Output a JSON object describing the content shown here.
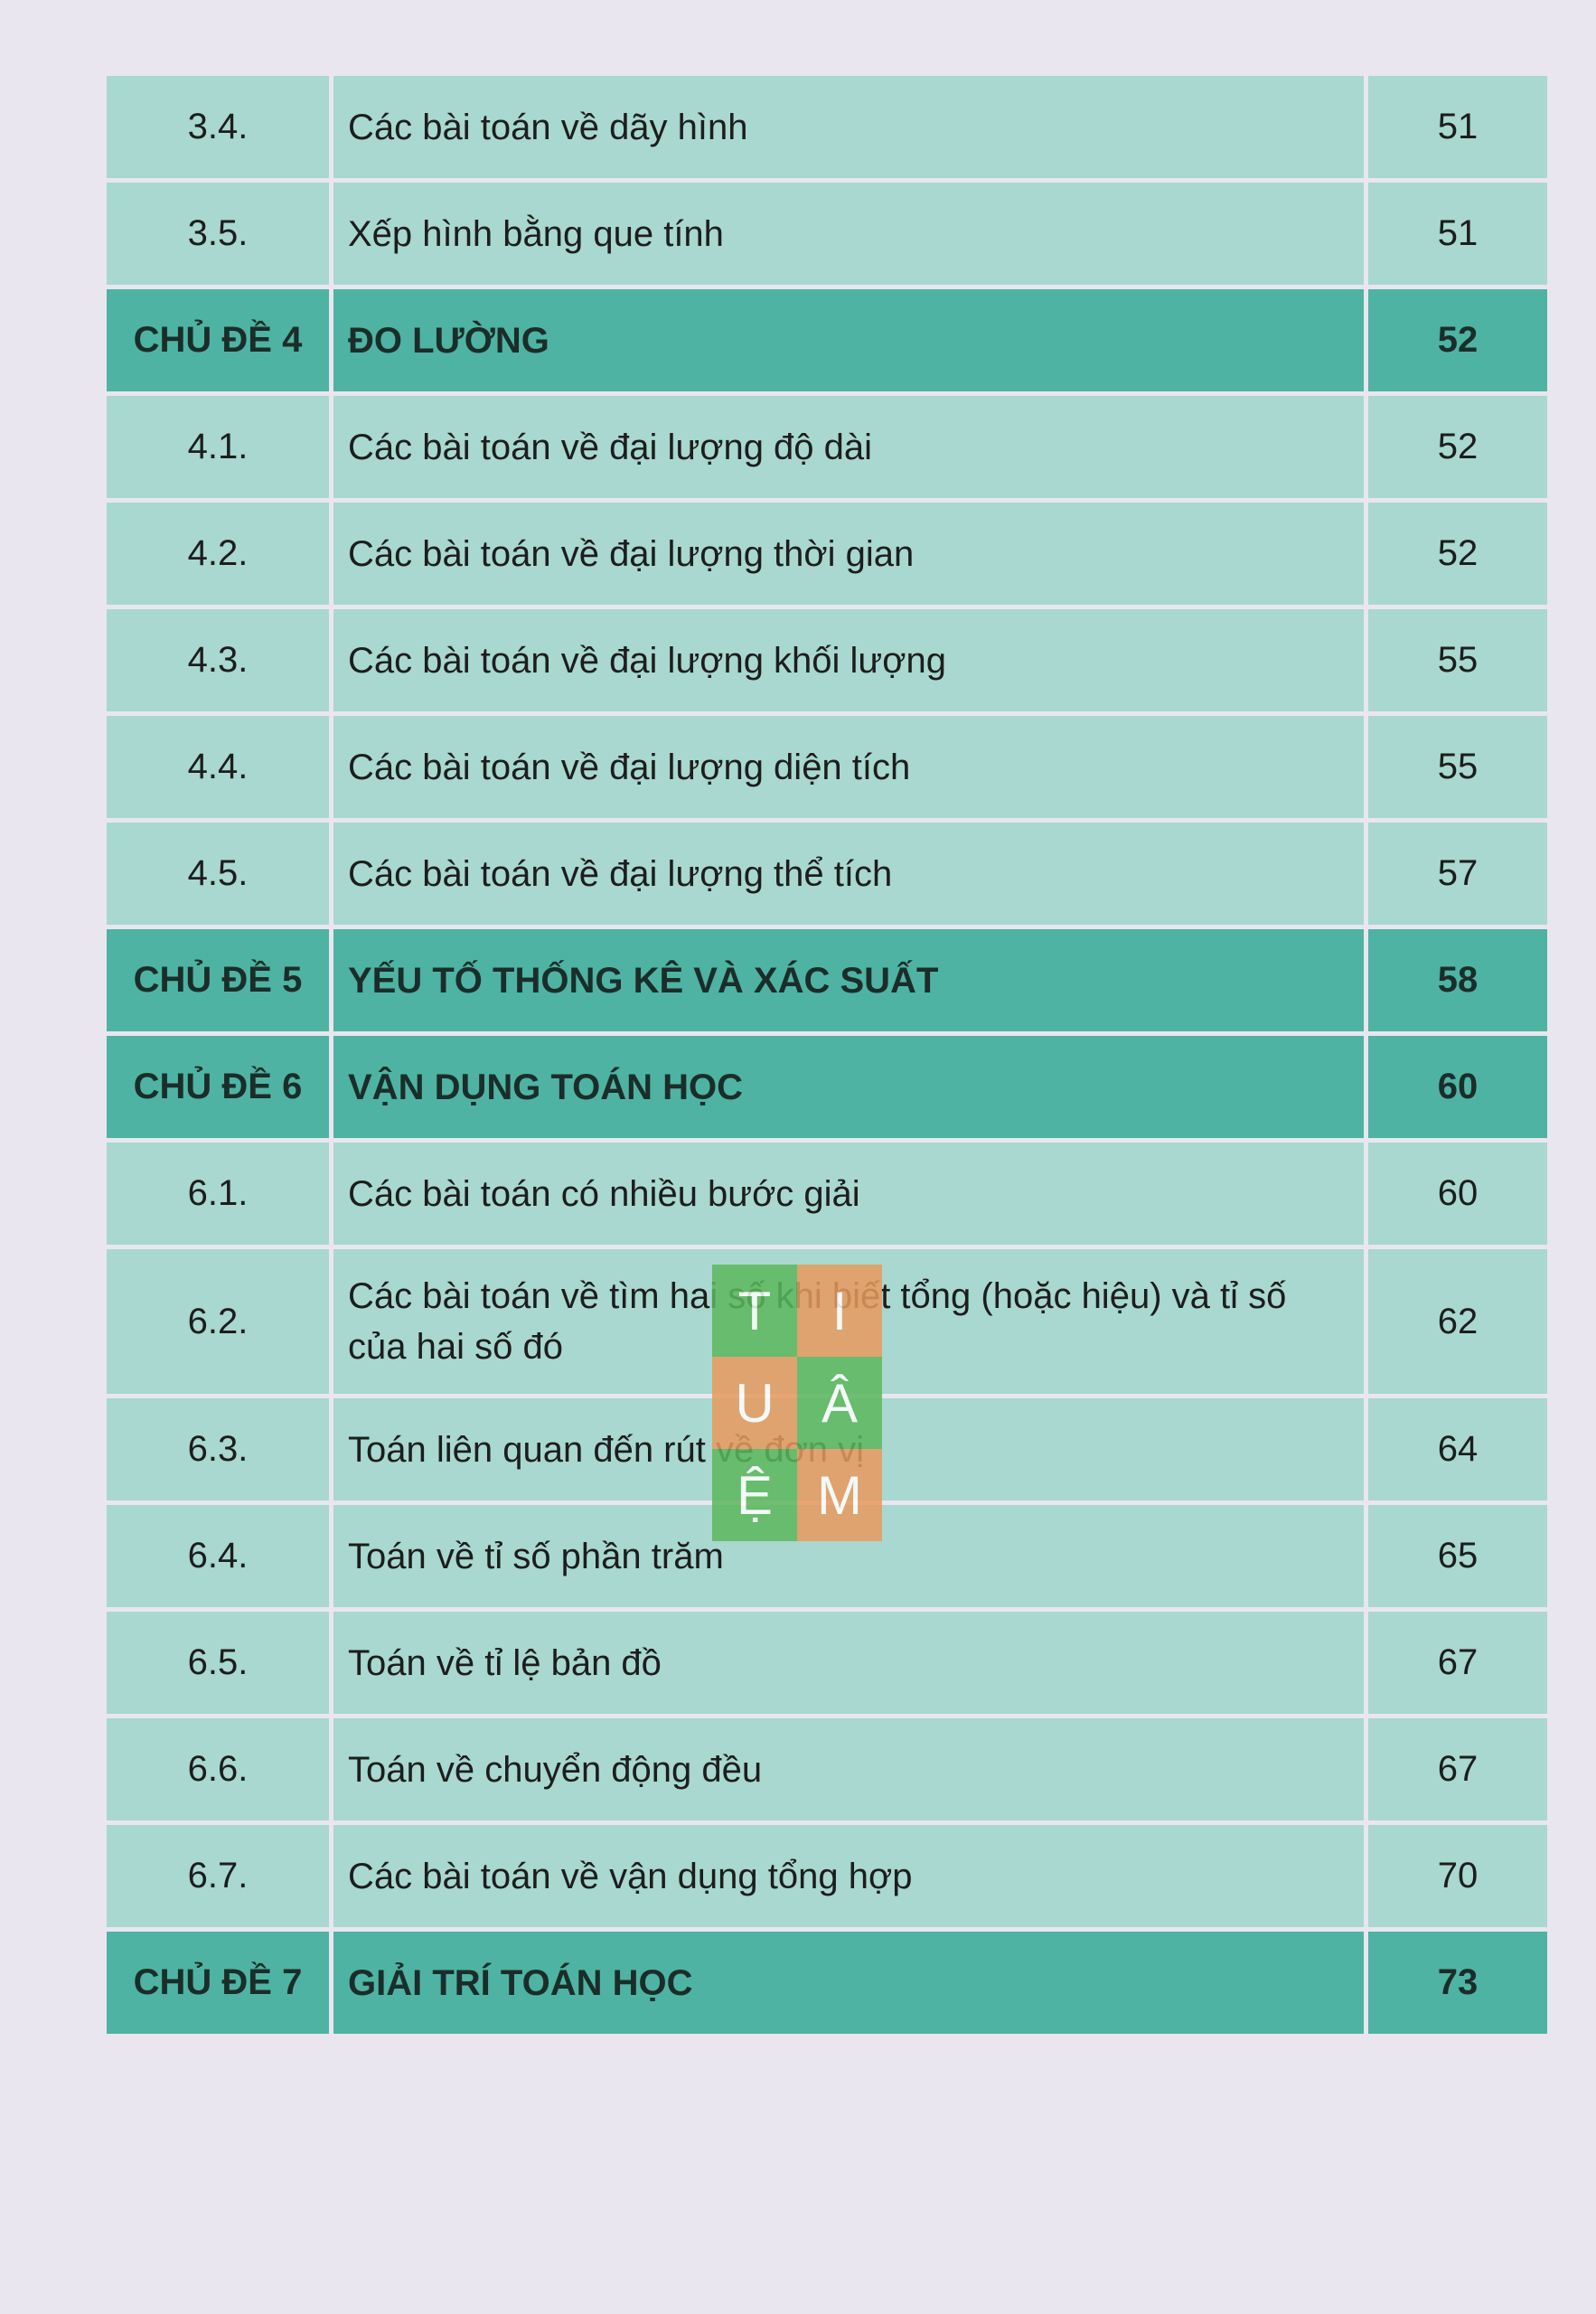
{
  "sections": [
    {
      "items": [
        {
          "number": "3.4.",
          "title": "Các bài toán về dãy hình",
          "page": "51"
        },
        {
          "number": "3.5.",
          "title": "Xếp hình bằng que tính",
          "page": "51"
        }
      ]
    },
    {
      "number": "CHỦ ĐỀ 4",
      "title": "ĐO LƯỜNG",
      "page": "52",
      "items": [
        {
          "number": "4.1.",
          "title": "Các bài toán về đại lượng độ dài",
          "page": "52"
        },
        {
          "number": "4.2.",
          "title": "Các bài toán về đại lượng thời gian",
          "page": "52"
        },
        {
          "number": "4.3.",
          "title": "Các bài toán về đại lượng khối lượng",
          "page": "55"
        },
        {
          "number": "4.4.",
          "title": "Các bài toán về đại lượng diện tích",
          "page": "55"
        },
        {
          "number": "4.5.",
          "title": "Các bài toán về đại lượng thể tích",
          "page": "57"
        }
      ]
    },
    {
      "number": "CHỦ ĐỀ 5",
      "title": "YẾU TỐ THỐNG KÊ VÀ XÁC SUẤT",
      "page": "58"
    },
    {
      "number": "CHỦ ĐỀ 6",
      "title": "VẬN DỤNG TOÁN HỌC",
      "page": "60",
      "items": [
        {
          "number": "6.1.",
          "title": "Các bài toán có nhiều bước giải",
          "page": "60"
        },
        {
          "number": "6.2.",
          "title": "Các bài toán về tìm hai số khi biết tổng (hoặc hiệu) và tỉ số của hai số đó",
          "page": "62"
        },
        {
          "number": "6.3.",
          "title": "Toán liên quan đến rút về đơn vị",
          "page": "64"
        },
        {
          "number": "6.4.",
          "title": "Toán về tỉ số phần trăm",
          "page": "65"
        },
        {
          "number": "6.5.",
          "title": "Toán về tỉ lệ bản đồ",
          "page": "67"
        },
        {
          "number": "6.6.",
          "title": "Toán về chuyển động đều",
          "page": "67"
        },
        {
          "number": "6.7.",
          "title": "Các bài toán về vận dụng tổng hợp",
          "page": "70"
        }
      ]
    },
    {
      "number": "CHỦ ĐỀ 7",
      "title": "GIẢI TRÍ TOÁN HỌC",
      "page": "73"
    }
  ],
  "watermark": [
    "T",
    "I",
    "U",
    "Â",
    "Ệ",
    "M"
  ]
}
